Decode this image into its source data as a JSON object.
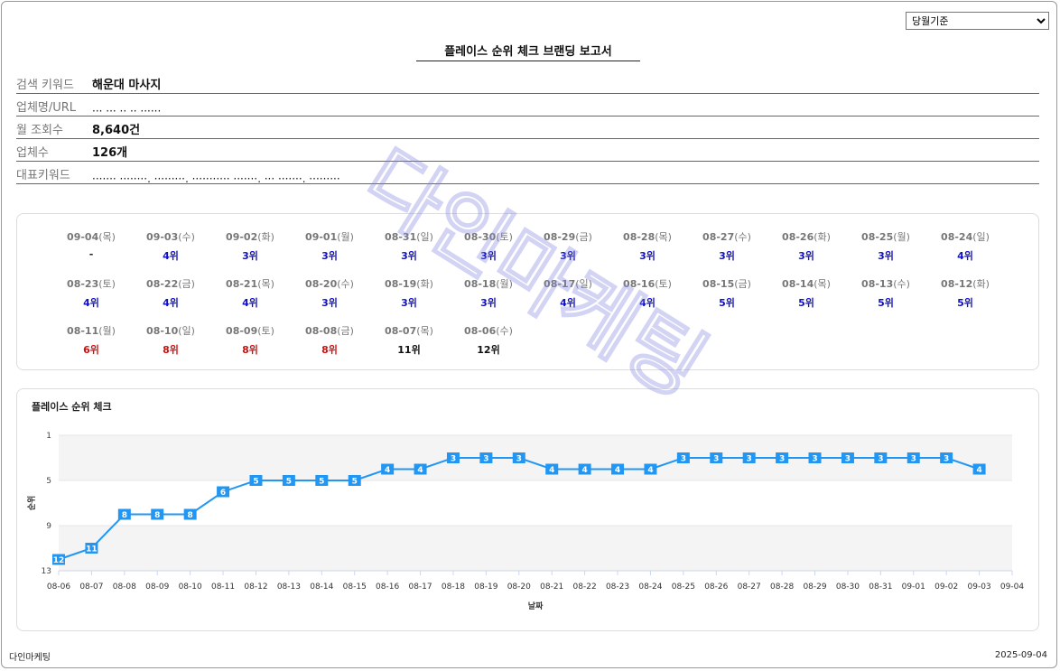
{
  "period_select": {
    "selected": "당월기준"
  },
  "report_title": "플레이스 순위 체크 브랜딩 보고서",
  "info": [
    {
      "label": "검색 키워드",
      "value": "해운대 마사지"
    },
    {
      "label": "업체명/URL",
      "value": "··· ··· ·· ·· ······"
    },
    {
      "label": "월 조회수",
      "value": "8,640건"
    },
    {
      "label": "업체수",
      "value": "126개"
    },
    {
      "label": "대표키워드",
      "value": "······· ········, ·········, ··········· ·······, ··· ·······, ·········"
    }
  ],
  "daily_ranks": [
    {
      "date": "09-04",
      "dow": "(목)",
      "rank": "-",
      "color": "#222222"
    },
    {
      "date": "09-03",
      "dow": "(수)",
      "rank": "4위",
      "color": "#1010c8"
    },
    {
      "date": "09-02",
      "dow": "(화)",
      "rank": "3위",
      "color": "#1010c8"
    },
    {
      "date": "09-01",
      "dow": "(월)",
      "rank": "3위",
      "color": "#1010c8"
    },
    {
      "date": "08-31",
      "dow": "(일)",
      "rank": "3위",
      "color": "#1010c8"
    },
    {
      "date": "08-30",
      "dow": "(토)",
      "rank": "3위",
      "color": "#1010c8"
    },
    {
      "date": "08-29",
      "dow": "(금)",
      "rank": "3위",
      "color": "#1010c8"
    },
    {
      "date": "08-28",
      "dow": "(목)",
      "rank": "3위",
      "color": "#1010c8"
    },
    {
      "date": "08-27",
      "dow": "(수)",
      "rank": "3위",
      "color": "#1010c8"
    },
    {
      "date": "08-26",
      "dow": "(화)",
      "rank": "3위",
      "color": "#1010c8"
    },
    {
      "date": "08-25",
      "dow": "(월)",
      "rank": "3위",
      "color": "#1010c8"
    },
    {
      "date": "08-24",
      "dow": "(일)",
      "rank": "4위",
      "color": "#1010c8"
    },
    {
      "date": "08-23",
      "dow": "(토)",
      "rank": "4위",
      "color": "#1010c8"
    },
    {
      "date": "08-22",
      "dow": "(금)",
      "rank": "4위",
      "color": "#1010c8"
    },
    {
      "date": "08-21",
      "dow": "(목)",
      "rank": "4위",
      "color": "#1010c8"
    },
    {
      "date": "08-20",
      "dow": "(수)",
      "rank": "3위",
      "color": "#1010c8"
    },
    {
      "date": "08-19",
      "dow": "(화)",
      "rank": "3위",
      "color": "#1010c8"
    },
    {
      "date": "08-18",
      "dow": "(월)",
      "rank": "3위",
      "color": "#1010c8"
    },
    {
      "date": "08-17",
      "dow": "(일)",
      "rank": "4위",
      "color": "#1010c8"
    },
    {
      "date": "08-16",
      "dow": "(토)",
      "rank": "4위",
      "color": "#1010c8"
    },
    {
      "date": "08-15",
      "dow": "(금)",
      "rank": "5위",
      "color": "#1010c8"
    },
    {
      "date": "08-14",
      "dow": "(목)",
      "rank": "5위",
      "color": "#1010c8"
    },
    {
      "date": "08-13",
      "dow": "(수)",
      "rank": "5위",
      "color": "#1010c8"
    },
    {
      "date": "08-12",
      "dow": "(화)",
      "rank": "5위",
      "color": "#1010c8"
    },
    {
      "date": "08-11",
      "dow": "(월)",
      "rank": "6위",
      "color": "#d01010"
    },
    {
      "date": "08-10",
      "dow": "(일)",
      "rank": "8위",
      "color": "#d01010"
    },
    {
      "date": "08-09",
      "dow": "(토)",
      "rank": "8위",
      "color": "#d01010"
    },
    {
      "date": "08-08",
      "dow": "(금)",
      "rank": "8위",
      "color": "#d01010"
    },
    {
      "date": "08-07",
      "dow": "(목)",
      "rank": "11위",
      "color": "#111111"
    },
    {
      "date": "08-06",
      "dow": "(수)",
      "rank": "12위",
      "color": "#111111"
    }
  ],
  "chart_title": "플레이스 순위 체크",
  "chart_data": {
    "type": "line",
    "title": "",
    "xlabel": "날짜",
    "ylabel": "순위",
    "categories": [
      "08-06",
      "08-07",
      "08-08",
      "08-09",
      "08-10",
      "08-11",
      "08-12",
      "08-13",
      "08-14",
      "08-15",
      "08-16",
      "08-17",
      "08-18",
      "08-19",
      "08-20",
      "08-21",
      "08-22",
      "08-23",
      "08-24",
      "08-25",
      "08-26",
      "08-27",
      "08-28",
      "08-29",
      "08-30",
      "08-31",
      "09-01",
      "09-02",
      "09-03",
      "09-04"
    ],
    "series": [
      {
        "values": [
          12,
          11,
          8,
          8,
          8,
          6,
          5,
          5,
          5,
          5,
          4,
          4,
          3,
          3,
          3,
          4,
          4,
          4,
          4,
          3,
          3,
          3,
          3,
          3,
          3,
          3,
          3,
          3,
          4,
          null
        ],
        "color": "#2196f3"
      }
    ],
    "yticks": [
      1,
      5,
      9,
      13
    ],
    "ylim": [
      1,
      13
    ],
    "y_reversed": true,
    "grid": "alternating-bands",
    "legend": "none"
  },
  "watermark": "다인마케팅",
  "footer": {
    "company": "다인마케팅",
    "date": "2025-09-04"
  }
}
